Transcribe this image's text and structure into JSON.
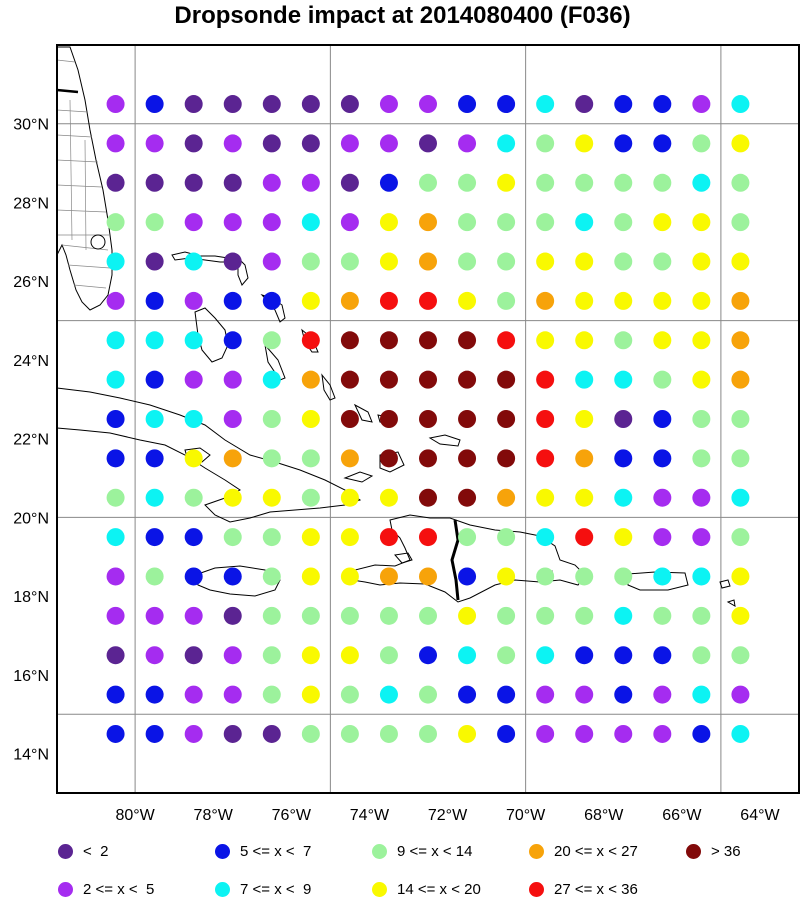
{
  "title": "Dropsonde impact at 2014080400 (F036)",
  "map": {
    "lon_range": [
      -82.0,
      -63.0
    ],
    "lat_range": [
      13.0,
      32.0
    ],
    "lon_ticks": [
      "80°W",
      "78°W",
      "76°W",
      "74°W",
      "72°W",
      "70°W",
      "68°W",
      "66°W",
      "64°W"
    ],
    "lat_ticks": [
      "14°N",
      "16°N",
      "18°N",
      "20°N",
      "22°N",
      "24°N",
      "26°N",
      "28°N",
      "30°N"
    ],
    "grid_lons": [
      -80,
      -75,
      -70,
      -65
    ],
    "grid_lats": [
      15,
      20,
      25,
      30
    ],
    "points": {
      "lons": [
        -80.5,
        -79.5,
        -78.5,
        -77.5,
        -76.5,
        -75.5,
        -74.5,
        -73.5,
        -72.5,
        -71.5,
        -70.5,
        -69.5,
        -68.5,
        -67.5,
        -66.5,
        -65.5,
        -64.5
      ],
      "lats": [
        30.5,
        29.5,
        28.5,
        27.5,
        26.5,
        25.5,
        24.5,
        23.5,
        22.5,
        21.5,
        20.5,
        19.5,
        18.5,
        17.5,
        16.5,
        15.5,
        14.5
      ],
      "categories": [
        [
          "p",
          "b",
          "d",
          "d",
          "d",
          "d",
          "d",
          "p",
          "p",
          "b",
          "b",
          "c",
          "d",
          "b",
          "b",
          "p",
          "c"
        ],
        [
          "p",
          "p",
          "d",
          "p",
          "d",
          "d",
          "p",
          "p",
          "d",
          "p",
          "c",
          "g",
          "y",
          "b",
          "b",
          "g",
          "y"
        ],
        [
          "d",
          "d",
          "d",
          "d",
          "p",
          "p",
          "d",
          "b",
          "g",
          "g",
          "y",
          "g",
          "g",
          "g",
          "g",
          "c",
          "g"
        ],
        [
          "g",
          "g",
          "p",
          "p",
          "p",
          "c",
          "p",
          "y",
          "o",
          "g",
          "g",
          "g",
          "c",
          "g",
          "y",
          "y",
          "g"
        ],
        [
          "c",
          "d",
          "c",
          "d",
          "p",
          "g",
          "g",
          "y",
          "o",
          "g",
          "g",
          "y",
          "y",
          "g",
          "g",
          "y",
          "y"
        ],
        [
          "p",
          "b",
          "p",
          "b",
          "b",
          "y",
          "o",
          "r",
          "r",
          "y",
          "g",
          "o",
          "y",
          "y",
          "y",
          "y",
          "o"
        ],
        [
          "c",
          "c",
          "c",
          "b",
          "g",
          "r",
          "m",
          "m",
          "m",
          "m",
          "r",
          "y",
          "y",
          "g",
          "y",
          "y",
          "o"
        ],
        [
          "c",
          "b",
          "p",
          "p",
          "c",
          "o",
          "m",
          "m",
          "m",
          "m",
          "m",
          "r",
          "c",
          "c",
          "g",
          "y",
          "o"
        ],
        [
          "b",
          "c",
          "c",
          "p",
          "g",
          "y",
          "m",
          "m",
          "m",
          "m",
          "m",
          "r",
          "y",
          "d",
          "b",
          "g",
          "g"
        ],
        [
          "b",
          "b",
          "y",
          "o",
          "g",
          "g",
          "o",
          "m",
          "m",
          "m",
          "m",
          "r",
          "o",
          "b",
          "b",
          "g",
          "g"
        ],
        [
          "g",
          "c",
          "g",
          "y",
          "y",
          "g",
          "y",
          "y",
          "m",
          "m",
          "o",
          "y",
          "y",
          "c",
          "p",
          "p",
          "c"
        ],
        [
          "c",
          "b",
          "b",
          "g",
          "g",
          "y",
          "y",
          "r",
          "r",
          "g",
          "g",
          "c",
          "r",
          "y",
          "p",
          "p",
          "g"
        ],
        [
          "p",
          "g",
          "b",
          "b",
          "g",
          "y",
          "y",
          "o",
          "o",
          "b",
          "y",
          "g",
          "g",
          "g",
          "c",
          "c",
          "y"
        ],
        [
          "p",
          "p",
          "p",
          "d",
          "g",
          "g",
          "g",
          "g",
          "g",
          "y",
          "g",
          "g",
          "g",
          "c",
          "g",
          "g",
          "y"
        ],
        [
          "d",
          "p",
          "d",
          "p",
          "g",
          "y",
          "y",
          "g",
          "b",
          "c",
          "g",
          "c",
          "b",
          "b",
          "b",
          "g",
          "g"
        ],
        [
          "b",
          "b",
          "p",
          "p",
          "g",
          "y",
          "g",
          "c",
          "g",
          "b",
          "b",
          "p",
          "p",
          "b",
          "p",
          "c",
          "p"
        ],
        [
          "b",
          "b",
          "p",
          "d",
          "d",
          "g",
          "g",
          "g",
          "g",
          "y",
          "b",
          "p",
          "p",
          "p",
          "p",
          "b",
          "c"
        ]
      ]
    }
  },
  "legend": {
    "items": [
      {
        "key": "d",
        "label": "<  2",
        "color": "#5b2492"
      },
      {
        "key": "p",
        "label": "2 <= x <  5",
        "color": "#a52cf0"
      },
      {
        "key": "b",
        "label": "5 <= x <  7",
        "color": "#0a14e6"
      },
      {
        "key": "c",
        "label": "7 <= x <  9",
        "color": "#0cf3f3"
      },
      {
        "key": "g",
        "label": "9 <= x < 14",
        "color": "#9cf29c"
      },
      {
        "key": "y",
        "label": "14 <= x < 20",
        "color": "#f9f900"
      },
      {
        "key": "o",
        "label": "20 <= x < 27",
        "color": "#f7a30a"
      },
      {
        "key": "r",
        "label": "27 <= x < 36",
        "color": "#f50f0f"
      },
      {
        "key": "m",
        "label": "> 36",
        "color": "#820a0a"
      }
    ]
  }
}
